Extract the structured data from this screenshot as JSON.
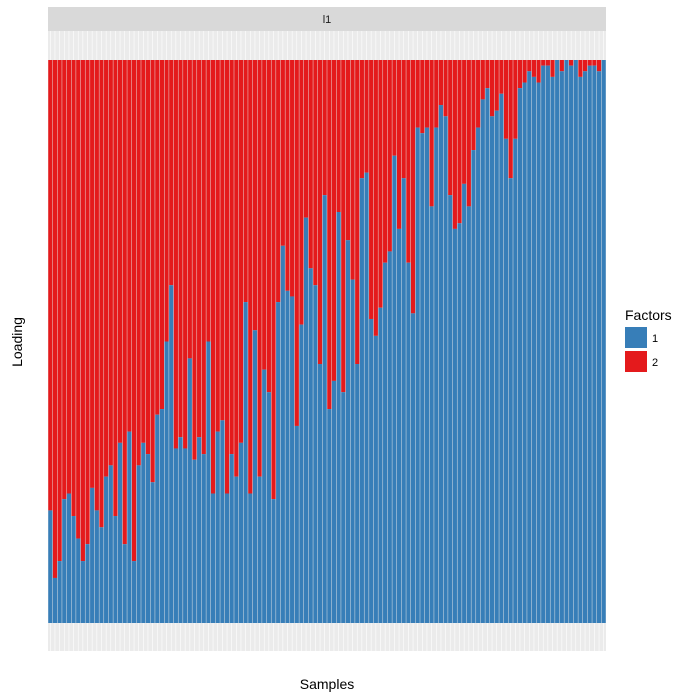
{
  "chart_data": {
    "type": "bar",
    "stacked": true,
    "facet_label": "l1",
    "xlabel": "Samples",
    "ylabel": "Loading",
    "ylim": [
      0,
      1
    ],
    "legend": {
      "title": "Factors",
      "position": "right"
    },
    "series": [
      {
        "name": "1",
        "color": "#377EB8",
        "values": [
          0.2,
          0.08,
          0.11,
          0.22,
          0.23,
          0.19,
          0.15,
          0.11,
          0.14,
          0.24,
          0.2,
          0.17,
          0.26,
          0.28,
          0.19,
          0.32,
          0.14,
          0.34,
          0.11,
          0.28,
          0.32,
          0.3,
          0.25,
          0.37,
          0.38,
          0.5,
          0.6,
          0.31,
          0.33,
          0.31,
          0.47,
          0.29,
          0.33,
          0.3,
          0.5,
          0.23,
          0.34,
          0.36,
          0.23,
          0.3,
          0.26,
          0.32,
          0.57,
          0.23,
          0.52,
          0.26,
          0.45,
          0.41,
          0.22,
          0.57,
          0.67,
          0.59,
          0.58,
          0.35,
          0.53,
          0.72,
          0.63,
          0.6,
          0.46,
          0.76,
          0.38,
          0.43,
          0.73,
          0.41,
          0.68,
          0.61,
          0.46,
          0.79,
          0.8,
          0.54,
          0.51,
          0.56,
          0.64,
          0.66,
          0.83,
          0.7,
          0.79,
          0.64,
          0.55,
          0.88,
          0.87,
          0.88,
          0.74,
          0.88,
          0.92,
          0.9,
          0.76,
          0.7,
          0.71,
          0.78,
          0.74,
          0.84,
          0.88,
          0.93,
          0.95,
          0.9,
          0.91,
          0.94,
          0.86,
          0.79,
          0.86,
          0.95,
          0.96,
          0.98,
          0.97,
          0.96,
          0.99,
          0.99,
          0.97,
          1.0,
          0.98,
          1.0,
          0.99,
          1.0,
          0.97,
          0.98,
          0.99,
          0.99,
          0.98,
          1.0
        ]
      },
      {
        "name": "2",
        "color": "#E41A1C"
      }
    ]
  }
}
